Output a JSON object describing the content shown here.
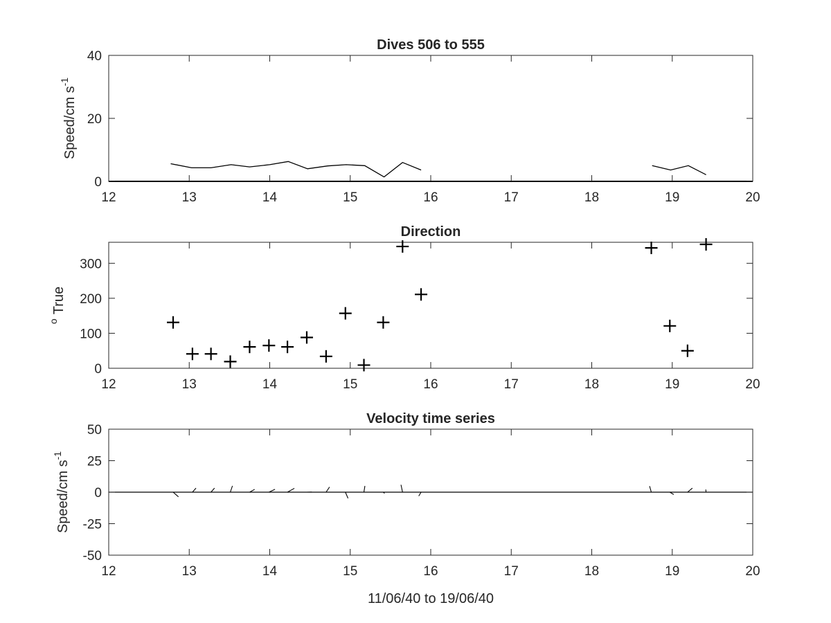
{
  "figure": {
    "xlabel": "11/06/40 to 19/06/40"
  },
  "chart_data": [
    {
      "type": "line",
      "title": "Dives 506 to 555",
      "ylabel": "Speed/cm s",
      "ylabel_sup": "-1",
      "xlim": [
        12,
        20
      ],
      "ylim": [
        0,
        40
      ],
      "xticks": [
        12,
        13,
        14,
        15,
        16,
        17,
        18,
        19,
        20
      ],
      "yticks": [
        0,
        20,
        40
      ],
      "grid": false,
      "series": [
        {
          "color": "#000000",
          "segments": [
            {
              "x": [
                12.77,
                13.03,
                13.27,
                13.52,
                13.75,
                14.0,
                14.23,
                14.47,
                14.72,
                14.95,
                15.18,
                15.42,
                15.65,
                15.88
              ],
              "y": [
                5.6,
                4.3,
                4.3,
                5.3,
                4.6,
                5.3,
                6.3,
                4.0,
                4.9,
                5.3,
                5.0,
                1.4,
                6.0,
                3.6
              ]
            },
            {
              "x": [
                18.75,
                18.98,
                19.2,
                19.42
              ],
              "y": [
                5.0,
                3.6,
                5.0,
                2.1
              ]
            }
          ]
        }
      ]
    },
    {
      "type": "scatter",
      "title": "Direction",
      "ylabel": "True",
      "ylabel_sup": "o",
      "xlim": [
        12,
        20
      ],
      "ylim": [
        0,
        360
      ],
      "xticks": [
        12,
        13,
        14,
        15,
        16,
        17,
        18,
        19,
        20
      ],
      "yticks": [
        0,
        100,
        200,
        300
      ],
      "grid": false,
      "marker": "+",
      "series": [
        {
          "color": "#000000",
          "x": [
            12.8,
            13.04,
            13.27,
            13.51,
            13.75,
            13.99,
            14.22,
            14.46,
            14.7,
            14.94,
            15.17,
            15.41,
            15.65,
            15.88,
            18.74,
            18.97,
            19.19,
            19.42
          ],
          "y": [
            131,
            41,
            41,
            19,
            61,
            65,
            61,
            88,
            34,
            157,
            9,
            131,
            348,
            211,
            344,
            121,
            50,
            354
          ]
        }
      ]
    },
    {
      "type": "line",
      "title": "Velocity time series",
      "ylabel": "Speed/cm s",
      "ylabel_sup": "-1",
      "xlim": [
        12,
        20
      ],
      "ylim": [
        -50,
        50
      ],
      "xticks": [
        12,
        13,
        14,
        15,
        16,
        17,
        18,
        19,
        20
      ],
      "yticks": [
        -50,
        -25,
        0,
        25,
        50
      ],
      "grid": false,
      "baseline": 0,
      "stick_plot": true,
      "sticks": {
        "x": [
          12.8,
          13.04,
          13.27,
          13.51,
          13.75,
          13.99,
          14.22,
          14.46,
          14.7,
          14.94,
          15.17,
          15.41,
          15.65,
          15.88,
          18.74,
          18.97,
          19.19,
          19.42
        ],
        "speed": [
          5.6,
          4.3,
          4.3,
          5.3,
          4.6,
          5.3,
          6.3,
          4.0,
          4.9,
          5.3,
          5.0,
          1.4,
          6.0,
          3.6,
          5.0,
          3.6,
          5.0,
          2.1
        ],
        "direction": [
          131,
          41,
          41,
          19,
          61,
          65,
          61,
          88,
          34,
          157,
          9,
          131,
          348,
          211,
          344,
          121,
          50,
          354
        ]
      }
    }
  ]
}
